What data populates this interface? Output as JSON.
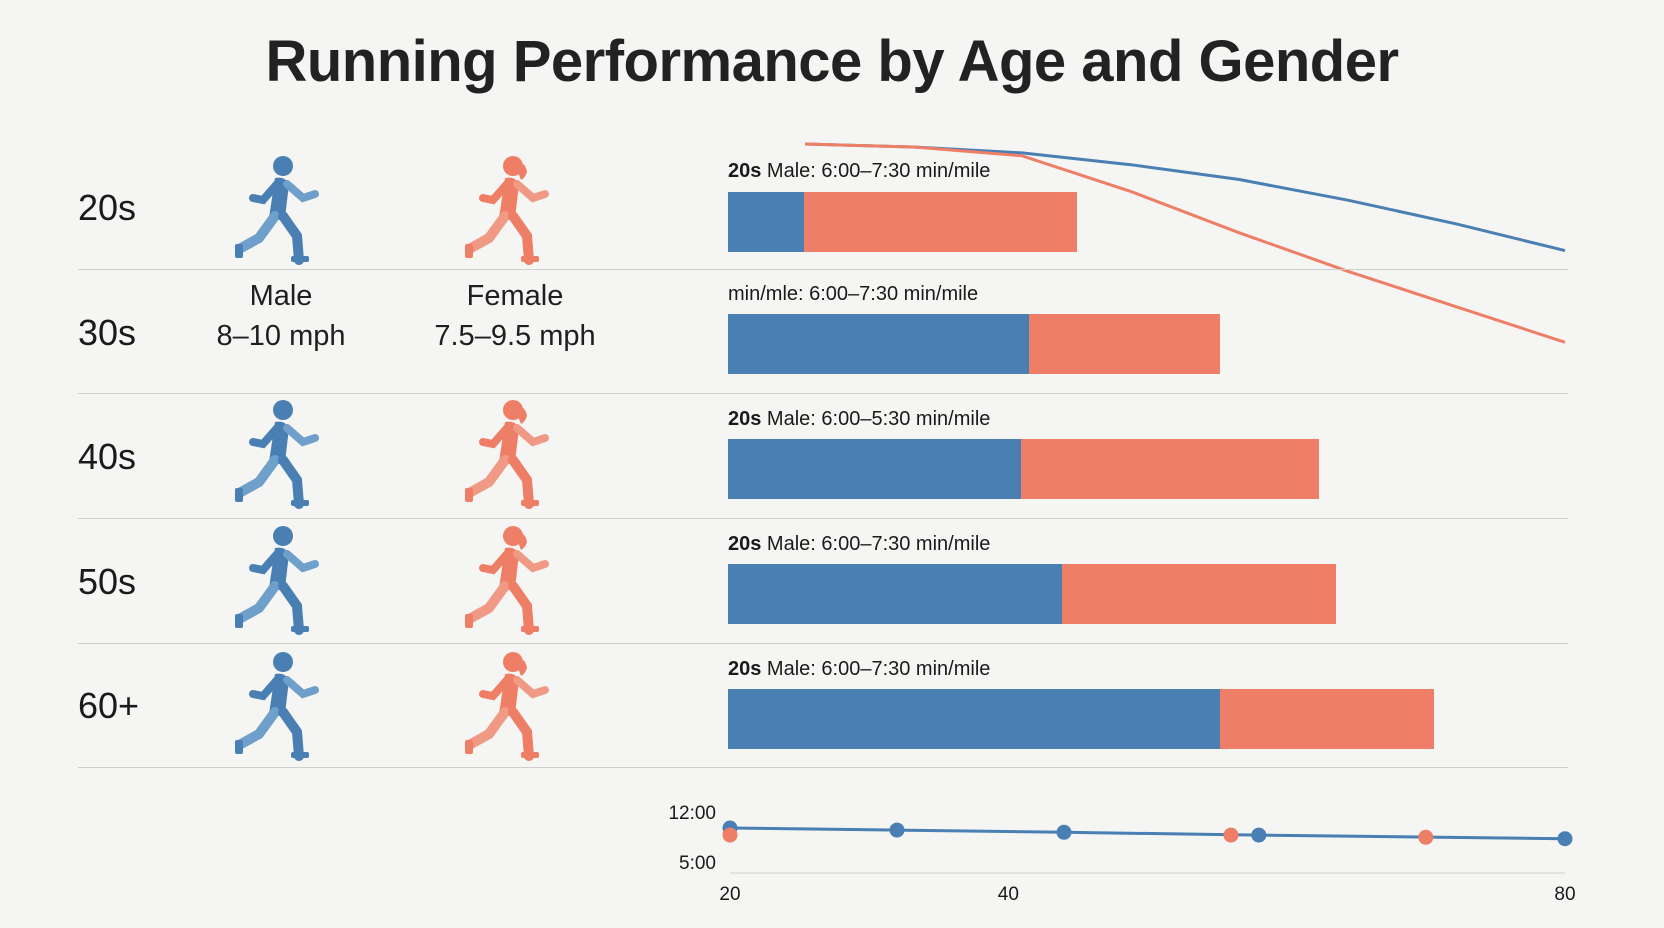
{
  "title": "Running Performance by Age and Gender",
  "colors": {
    "male": "#4a7fb3",
    "female": "#ee7e66",
    "male_light": "#6f9fcb",
    "female_light": "#f09a85"
  },
  "legend": {
    "male_label": "Male",
    "male_speed": "8–10 mph",
    "female_label": "Female",
    "female_speed": "7.5–9.5 mph"
  },
  "rows": [
    {
      "age": "20s",
      "label_bold": "20s",
      "label_rest": " Male: 6:00–7:30 min/mile",
      "male_frac": 0.09,
      "female_frac": 0.415
    },
    {
      "age": "30s",
      "label_bold": "",
      "label_rest": "min/mle: 6:00–7:30 min/mile",
      "male_frac": 0.358,
      "female_frac": 0.586
    },
    {
      "age": "40s",
      "label_bold": "20s",
      "label_rest": " Male: 6:00–5:30 min/mile",
      "male_frac": 0.349,
      "female_frac": 0.703
    },
    {
      "age": "50s",
      "label_bold": "20s",
      "label_rest": " Male: 6:00–7:30 min/mile",
      "male_frac": 0.398,
      "female_frac": 0.724
    },
    {
      "age": "60+",
      "label_bold": "20s",
      "label_rest": " Male: 6:00–7:30 min/mile",
      "male_frac": 0.586,
      "female_frac": 0.841
    }
  ],
  "chart_data": [
    {
      "type": "bar",
      "categories": [
        "20s",
        "30s",
        "40s",
        "50s",
        "60+"
      ],
      "series": [
        {
          "name": "Male",
          "values": [
            0.09,
            0.358,
            0.349,
            0.398,
            0.586
          ]
        },
        {
          "name": "Female",
          "values": [
            0.415,
            0.586,
            0.703,
            0.724,
            0.841
          ]
        }
      ],
      "stacked": true
    },
    {
      "type": "line",
      "series": [
        {
          "name": "Male",
          "values": [
            100,
            99,
            97,
            93,
            88,
            81,
            73,
            64
          ]
        },
        {
          "name": "Female",
          "values": [
            100,
            99,
            96,
            84,
            70,
            57,
            45,
            33
          ]
        }
      ]
    },
    {
      "type": "scatter",
      "x_ticks": [
        "20",
        "40",
        "80"
      ],
      "y_ticks": [
        "12:00",
        "5:00"
      ],
      "xlim": [
        20,
        80
      ],
      "series": [
        {
          "name": "Male",
          "x": [
            20,
            32,
            44,
            58,
            80
          ],
          "y": [
            9.9,
            9.6,
            9.3,
            8.9,
            8.4
          ],
          "connected": true
        },
        {
          "name": "Female",
          "x": [
            20,
            56,
            70
          ],
          "y": [
            8.9,
            8.9,
            8.6
          ],
          "connected": false
        }
      ]
    }
  ]
}
